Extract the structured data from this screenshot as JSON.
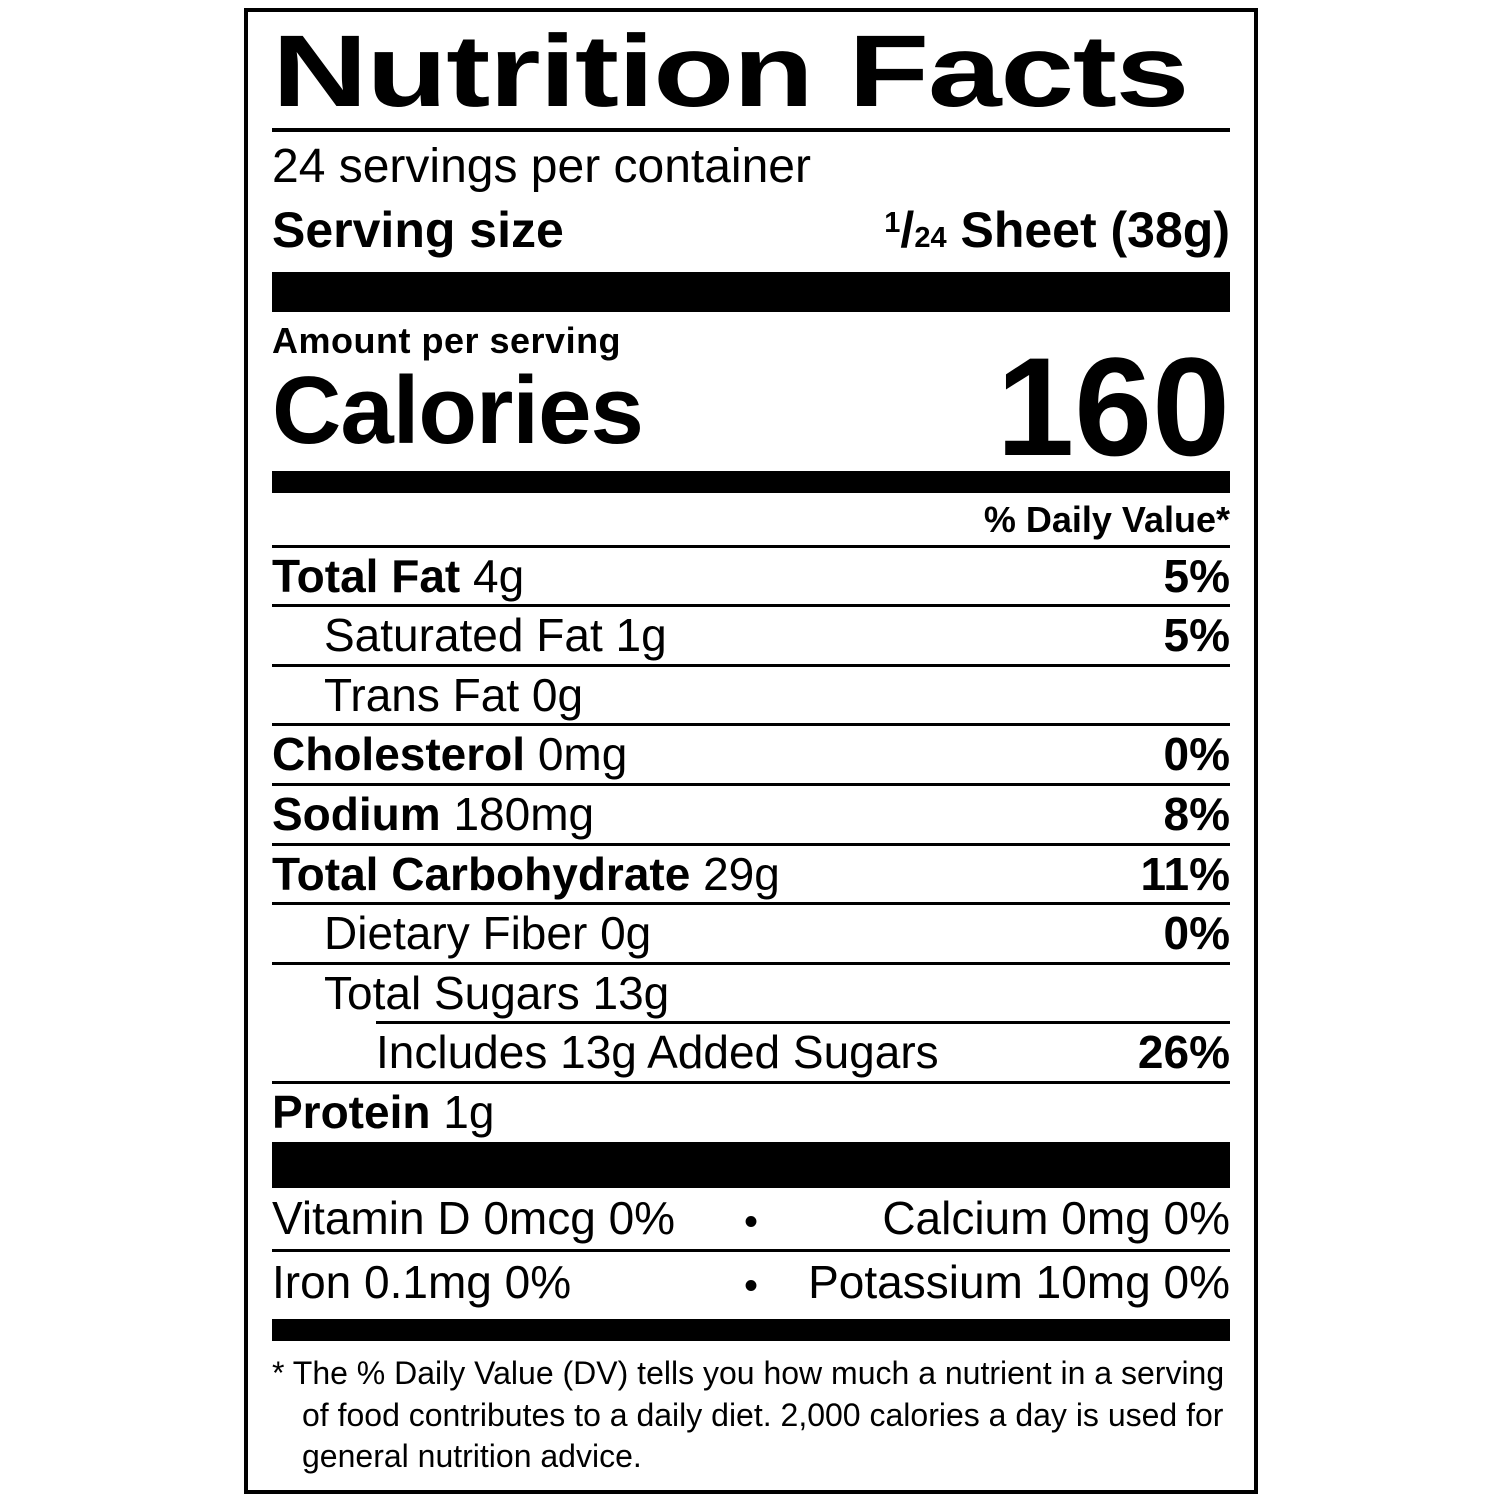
{
  "colors": {
    "ink": "#000000",
    "paper": "#ffffff"
  },
  "label": {
    "title": "Nutrition Facts",
    "servings_per_container": "24 servings per container",
    "serving_size": {
      "label": "Serving size",
      "numerator": "1",
      "slash": "/",
      "denominator": "24",
      "rest": " Sheet (38g)"
    },
    "amount_per_serving": "Amount per serving",
    "calories": {
      "label": "Calories",
      "value": "160"
    },
    "daily_value_header": "% Daily Value*",
    "nutrients": [
      {
        "name": "Total Fat",
        "amount": " 4g",
        "dv": "5%"
      },
      {
        "name": "Saturated Fat",
        "amount": " 1g",
        "dv": "5%"
      },
      {
        "name": "Trans Fat",
        "amount": " 0g",
        "dv": ""
      },
      {
        "name": "Cholesterol",
        "amount": " 0mg",
        "dv": "0%"
      },
      {
        "name": "Sodium",
        "amount": " 180mg",
        "dv": "8%"
      },
      {
        "name": "Total Carbohydrate",
        "amount": " 29g",
        "dv": "11%"
      },
      {
        "name": "Dietary Fiber",
        "amount": " 0g",
        "dv": "0%"
      },
      {
        "name": "Total Sugars",
        "amount": " 13g",
        "dv": ""
      },
      {
        "name": "Includes 13g Added Sugars",
        "amount": "",
        "dv": "26%"
      },
      {
        "name": "Protein",
        "amount": " 1g",
        "dv": ""
      }
    ],
    "micronutrients": {
      "bullet": "•",
      "rows": [
        {
          "left": "Vitamin D 0mcg 0%",
          "right": "Calcium 0mg 0%"
        },
        {
          "left": "Iron 0.1mg 0%",
          "right": "Potassium 10mg 0%"
        }
      ]
    },
    "footnote": "* The % Daily Value (DV) tells you how much a nutrient in a serving of food contributes to a daily diet. 2,000 calories a day is used for general nutrition advice."
  }
}
